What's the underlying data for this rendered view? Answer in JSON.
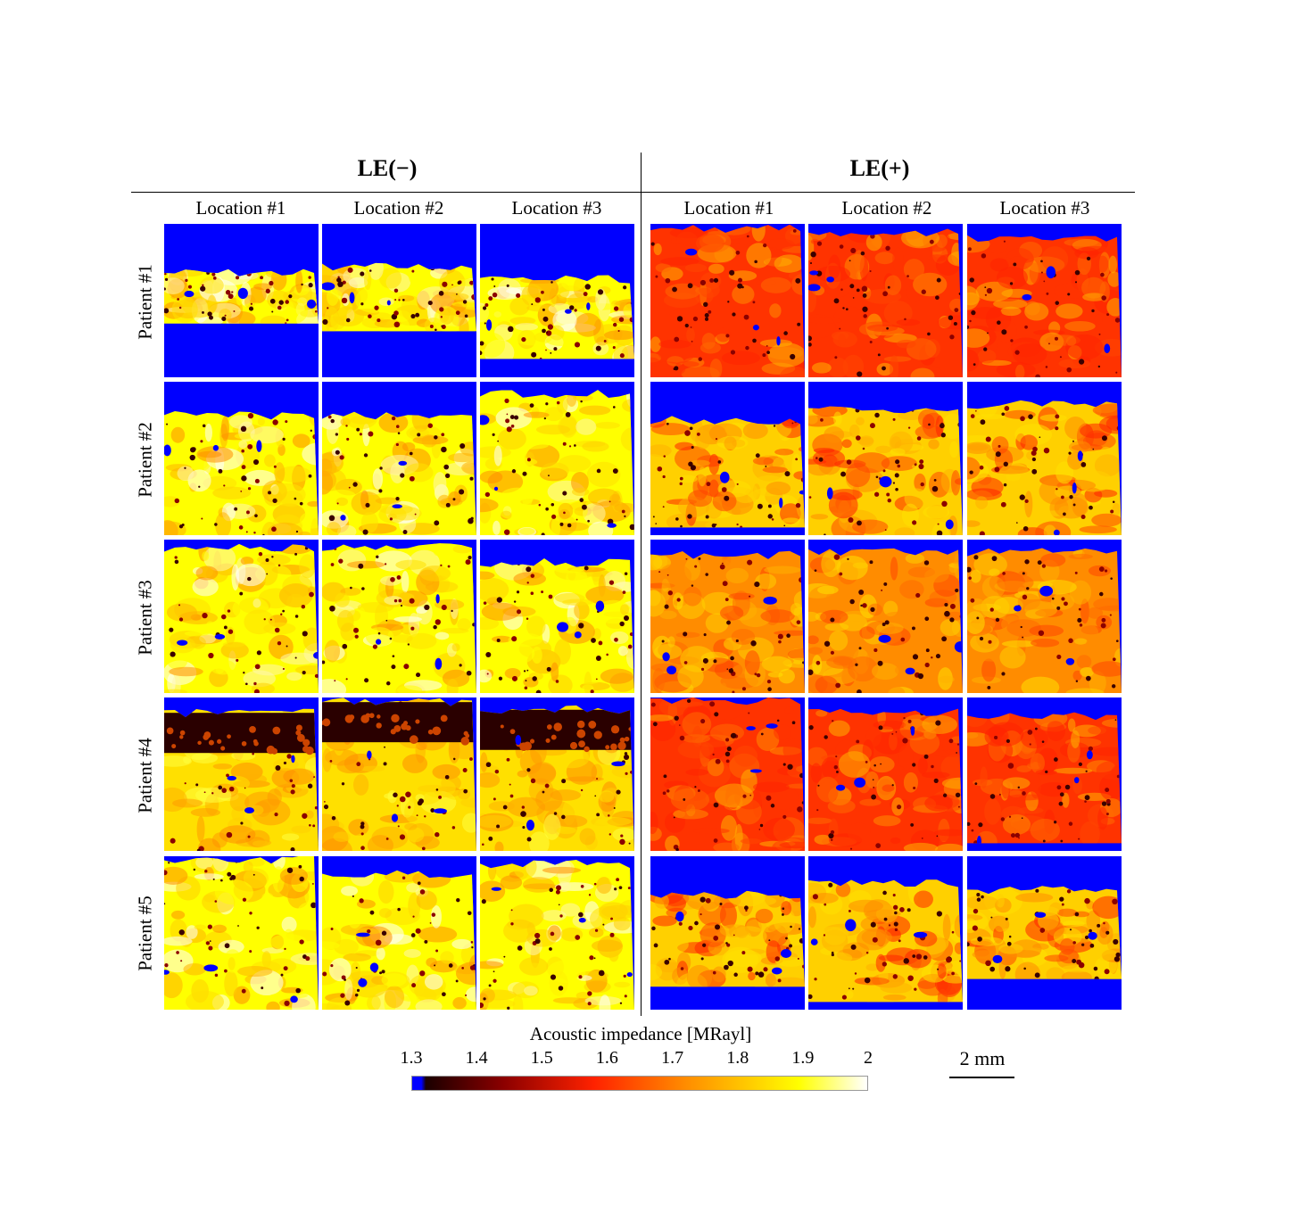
{
  "groups": [
    {
      "label": "LE(−)"
    },
    {
      "label": "LE(+)"
    }
  ],
  "columns": [
    "Location #1",
    "Location #2",
    "Location #3"
  ],
  "rows": [
    "Patient #1",
    "Patient #2",
    "Patient #3",
    "Patient #4",
    "Patient #5"
  ],
  "colorbar": {
    "title": "Acoustic impedance [MRayl]",
    "ticks": [
      "1.3",
      "1.4",
      "1.5",
      "1.6",
      "1.7",
      "1.8",
      "1.9",
      "2"
    ],
    "colors": [
      "#0000ff",
      "#1a0000",
      "#8b0000",
      "#ff2200",
      "#ff8c00",
      "#ffd000",
      "#ffff00",
      "#ffffff"
    ]
  },
  "scale_bar": {
    "label": "2 mm"
  },
  "panels": [
    {
      "group": 0,
      "row": 0,
      "col": 0,
      "tissue_top": 0.32,
      "tissue_bottom": 0.65,
      "palette": "bright"
    },
    {
      "group": 0,
      "row": 0,
      "col": 1,
      "tissue_top": 0.28,
      "tissue_bottom": 0.7,
      "palette": "bright"
    },
    {
      "group": 0,
      "row": 0,
      "col": 2,
      "tissue_top": 0.36,
      "tissue_bottom": 0.88,
      "palette": "bright"
    },
    {
      "group": 0,
      "row": 1,
      "col": 0,
      "tissue_top": 0.22,
      "tissue_bottom": 1.0,
      "palette": "bright"
    },
    {
      "group": 0,
      "row": 1,
      "col": 1,
      "tissue_top": 0.22,
      "tissue_bottom": 1.0,
      "palette": "bright"
    },
    {
      "group": 0,
      "row": 1,
      "col": 2,
      "tissue_top": 0.08,
      "tissue_bottom": 1.0,
      "palette": "bright"
    },
    {
      "group": 0,
      "row": 2,
      "col": 0,
      "tissue_top": 0.05,
      "tissue_bottom": 1.0,
      "palette": "bright"
    },
    {
      "group": 0,
      "row": 2,
      "col": 1,
      "tissue_top": 0.05,
      "tissue_bottom": 1.0,
      "palette": "bright"
    },
    {
      "group": 0,
      "row": 2,
      "col": 2,
      "tissue_top": 0.15,
      "tissue_bottom": 1.0,
      "palette": "bright"
    },
    {
      "group": 0,
      "row": 3,
      "col": 0,
      "tissue_top": 0.1,
      "tissue_bottom": 1.0,
      "palette": "dark-top"
    },
    {
      "group": 0,
      "row": 3,
      "col": 1,
      "tissue_top": 0.03,
      "tissue_bottom": 1.0,
      "palette": "dark-top"
    },
    {
      "group": 0,
      "row": 3,
      "col": 2,
      "tissue_top": 0.08,
      "tissue_bottom": 1.0,
      "palette": "dark-top"
    },
    {
      "group": 0,
      "row": 4,
      "col": 0,
      "tissue_top": 0.02,
      "tissue_bottom": 1.0,
      "palette": "bright"
    },
    {
      "group": 0,
      "row": 4,
      "col": 1,
      "tissue_top": 0.12,
      "tissue_bottom": 1.0,
      "palette": "bright"
    },
    {
      "group": 0,
      "row": 4,
      "col": 2,
      "tissue_top": 0.05,
      "tissue_bottom": 1.0,
      "palette": "bright"
    },
    {
      "group": 1,
      "row": 0,
      "col": 0,
      "tissue_top": 0.03,
      "tissue_bottom": 1.0,
      "palette": "red"
    },
    {
      "group": 1,
      "row": 0,
      "col": 1,
      "tissue_top": 0.06,
      "tissue_bottom": 1.0,
      "palette": "red"
    },
    {
      "group": 1,
      "row": 0,
      "col": 2,
      "tissue_top": 0.1,
      "tissue_bottom": 1.0,
      "palette": "red"
    },
    {
      "group": 1,
      "row": 1,
      "col": 0,
      "tissue_top": 0.25,
      "tissue_bottom": 0.95,
      "palette": "mixed"
    },
    {
      "group": 1,
      "row": 1,
      "col": 1,
      "tissue_top": 0.18,
      "tissue_bottom": 1.0,
      "palette": "mixed"
    },
    {
      "group": 1,
      "row": 1,
      "col": 2,
      "tissue_top": 0.15,
      "tissue_bottom": 1.0,
      "palette": "mixed"
    },
    {
      "group": 1,
      "row": 2,
      "col": 0,
      "tissue_top": 0.1,
      "tissue_bottom": 1.0,
      "palette": "orange"
    },
    {
      "group": 1,
      "row": 2,
      "col": 1,
      "tissue_top": 0.08,
      "tissue_bottom": 1.0,
      "palette": "orange"
    },
    {
      "group": 1,
      "row": 2,
      "col": 2,
      "tissue_top": 0.08,
      "tissue_bottom": 1.0,
      "palette": "orange"
    },
    {
      "group": 1,
      "row": 3,
      "col": 0,
      "tissue_top": 0.02,
      "tissue_bottom": 1.0,
      "palette": "red"
    },
    {
      "group": 1,
      "row": 3,
      "col": 1,
      "tissue_top": 0.1,
      "tissue_bottom": 1.0,
      "palette": "red"
    },
    {
      "group": 1,
      "row": 3,
      "col": 2,
      "tissue_top": 0.12,
      "tissue_bottom": 0.95,
      "palette": "red"
    },
    {
      "group": 1,
      "row": 4,
      "col": 0,
      "tissue_top": 0.25,
      "tissue_bottom": 0.85,
      "palette": "mixed"
    },
    {
      "group": 1,
      "row": 4,
      "col": 1,
      "tissue_top": 0.18,
      "tissue_bottom": 0.95,
      "palette": "mixed"
    },
    {
      "group": 1,
      "row": 4,
      "col": 2,
      "tissue_top": 0.22,
      "tissue_bottom": 0.8,
      "palette": "mixed"
    }
  ]
}
